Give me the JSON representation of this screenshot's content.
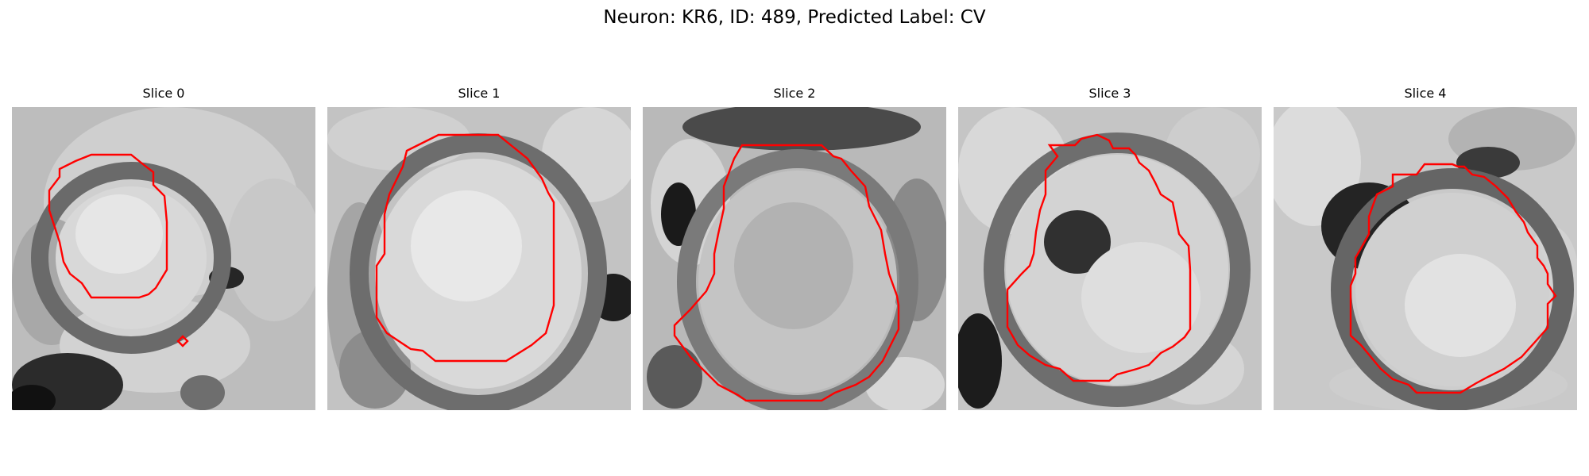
{
  "figure": {
    "title": "Neuron: KR6, ID: 489, Predicted Label: CV"
  },
  "panels": [
    {
      "title": "Slice 0",
      "image": "grayscale microscopy crop of a round cell body with a red outline contour",
      "contour_color": "#ff0000",
      "colormap": "grayscale"
    },
    {
      "title": "Slice 1",
      "image": "grayscale microscopy crop of a round cell body with a red outline contour",
      "contour_color": "#ff0000",
      "colormap": "grayscale"
    },
    {
      "title": "Slice 2",
      "image": "grayscale microscopy crop of a round cell body with a red outline contour",
      "contour_color": "#ff0000",
      "colormap": "grayscale"
    },
    {
      "title": "Slice 3",
      "image": "grayscale microscopy crop of a round cell body with a red outline contour",
      "contour_color": "#ff0000",
      "colormap": "grayscale"
    },
    {
      "title": "Slice 4",
      "image": "grayscale microscopy crop of a round cell body with a red outline contour",
      "contour_color": "#ff0000",
      "colormap": "grayscale"
    }
  ]
}
